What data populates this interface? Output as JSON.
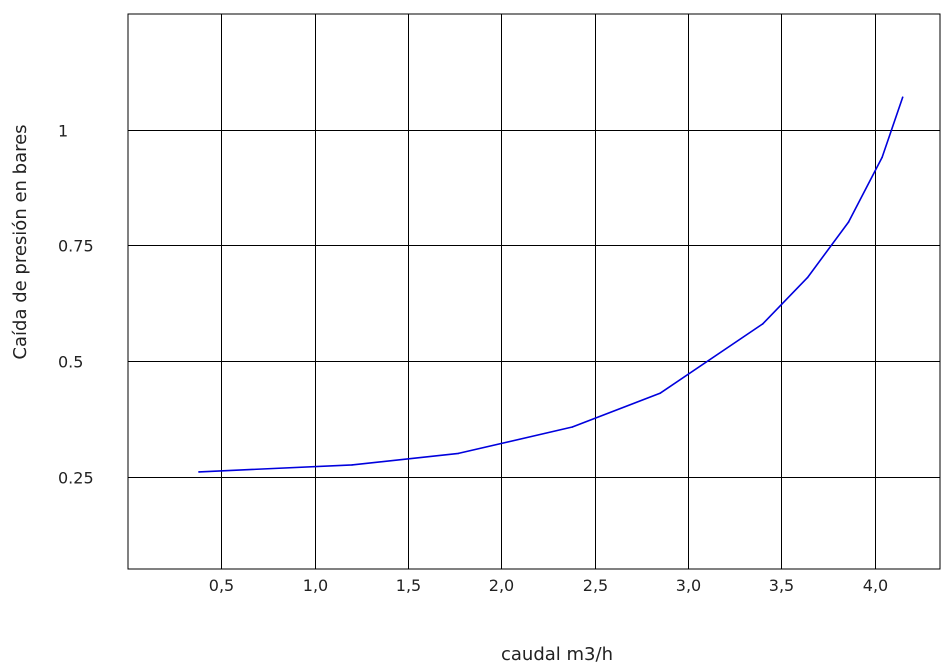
{
  "chart_data": {
    "type": "line",
    "title": "",
    "xlabel": "caudal m3/h",
    "ylabel": "Caída de presión en bares",
    "xlim": [
      0.0,
      4.35
    ],
    "ylim": [
      0.05,
      1.25
    ],
    "x_ticks": [
      {
        "value": 0.5,
        "label": "0,5"
      },
      {
        "value": 1.0,
        "label": "1,0"
      },
      {
        "value": 1.5,
        "label": "1,5"
      },
      {
        "value": 2.0,
        "label": "2,0"
      },
      {
        "value": 2.5,
        "label": "2,5"
      },
      {
        "value": 3.0,
        "label": "3,0"
      },
      {
        "value": 3.5,
        "label": "3,5"
      },
      {
        "value": 4.0,
        "label": "4,0"
      }
    ],
    "y_ticks": [
      {
        "value": 0.25,
        "label": "0.25"
      },
      {
        "value": 0.5,
        "label": "0.5"
      },
      {
        "value": 0.75,
        "label": "0.75"
      },
      {
        "value": 1.0,
        "label": "1"
      }
    ],
    "grid": true,
    "series": [
      {
        "color": "#0000dd",
        "points": [
          {
            "x": 0.38,
            "y": 0.26
          },
          {
            "x": 1.2,
            "y": 0.275
          },
          {
            "x": 1.77,
            "y": 0.3
          },
          {
            "x": 2.38,
            "y": 0.357
          },
          {
            "x": 2.85,
            "y": 0.43
          },
          {
            "x": 3.4,
            "y": 0.58
          },
          {
            "x": 3.64,
            "y": 0.68
          },
          {
            "x": 3.86,
            "y": 0.8
          },
          {
            "x": 4.04,
            "y": 0.94
          },
          {
            "x": 4.15,
            "y": 1.07
          }
        ]
      }
    ]
  }
}
